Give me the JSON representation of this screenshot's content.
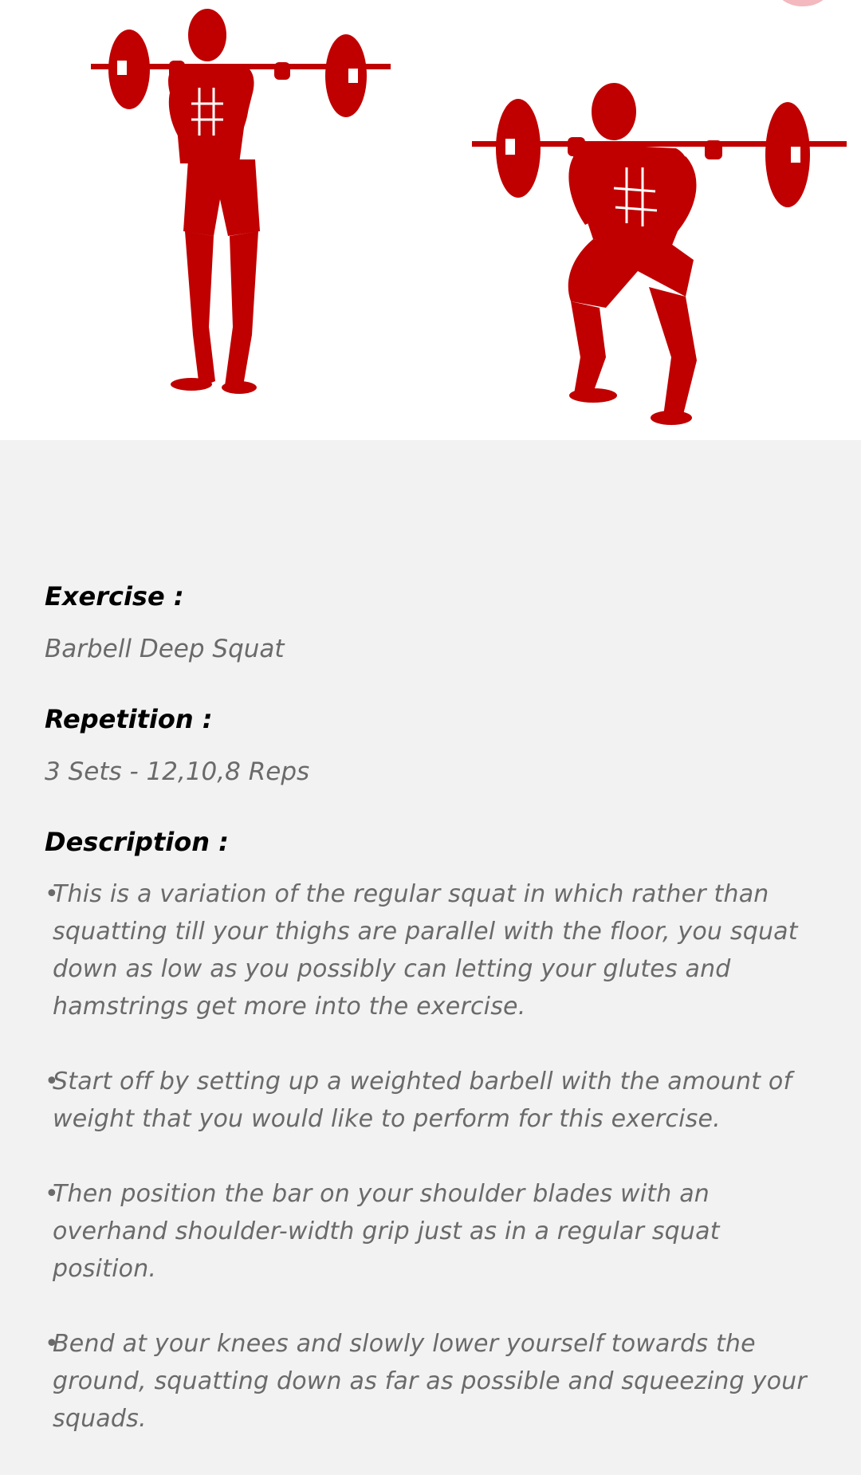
{
  "colors": {
    "figure": "#c00000",
    "background": "#f2f2f2",
    "hero_background": "#ffffff",
    "label": "#000000",
    "value": "#6a6a6a"
  },
  "illustration": {
    "icon": "barbell-squat-illustration",
    "figures": [
      "standing-barbell-figure",
      "squatting-barbell-figure"
    ]
  },
  "exercise": {
    "label": "Exercise :",
    "value": "Barbell Deep Squat"
  },
  "repetition": {
    "label": "Repetition :",
    "value": "3 Sets - 12,10,8 Reps"
  },
  "description": {
    "label": "Description :",
    "bullet_char": "•",
    "items": [
      "This is a variation of the regular squat in which rather than squatting till your thighs are parallel with the floor, you squat down as low as you possibly can letting your glutes and hamstrings get more into the exercise.",
      "Start off by setting up a weighted barbell with the amount of weight that you would like to perform for this exercise.",
      "Then position the bar on your shoulder blades with an overhand shoulder-width grip just as in a regular squat position.",
      "Bend at your knees and slowly lower yourself towards the ground, squatting down as far as possible and squeezing your squads."
    ]
  }
}
